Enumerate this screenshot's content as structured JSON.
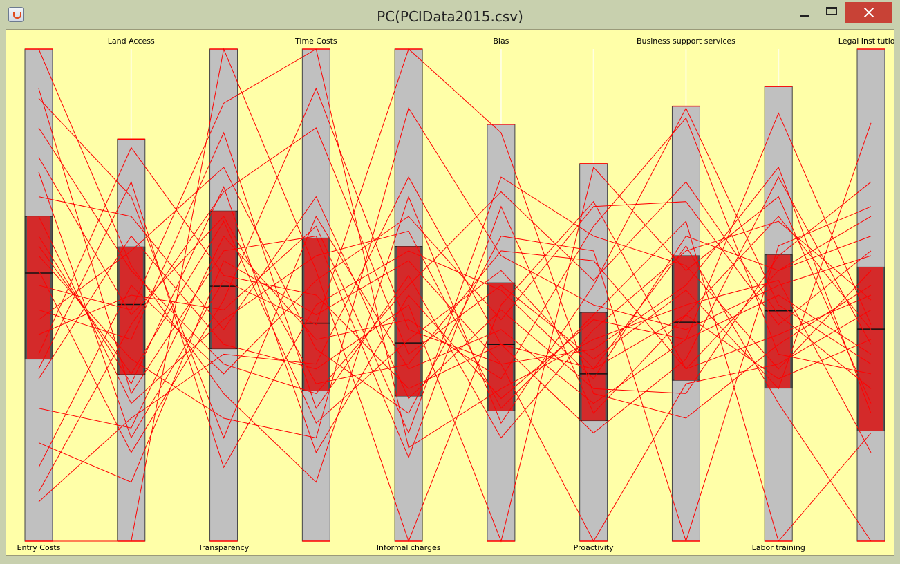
{
  "window": {
    "title": "PC(PCIData2015.csv)"
  },
  "chart_data": {
    "type": "parallel-coordinates",
    "title": "PC(PCIData2015.csv)",
    "line_color": "#ff0000",
    "box_color": "#d42a2a",
    "axis_bg_color": "#c0c0c0",
    "plot_bg_color": "#ffffa8",
    "axes": [
      {
        "name": "Entry Costs",
        "label_position": "bottom",
        "range_top": 1.0,
        "range_bottom": 0.0,
        "box_q3": 0.66,
        "box_median": 0.545,
        "box_q1": 0.37
      },
      {
        "name": "Land Access",
        "label_position": "top",
        "range_top": 0.817,
        "range_bottom": 0.0,
        "box_q3": 0.598,
        "box_median": 0.481,
        "box_q1": 0.339
      },
      {
        "name": "Transparency",
        "label_position": "bottom",
        "range_top": 1.0,
        "range_bottom": 0.0,
        "box_q3": 0.671,
        "box_median": 0.518,
        "box_q1": 0.391
      },
      {
        "name": "Time Costs",
        "label_position": "top",
        "range_top": 1.0,
        "range_bottom": 0.0,
        "box_q3": 0.616,
        "box_median": 0.443,
        "box_q1": 0.306
      },
      {
        "name": "Informal charges",
        "label_position": "bottom",
        "range_top": 1.0,
        "range_bottom": 0.0,
        "box_q3": 0.599,
        "box_median": 0.403,
        "box_q1": 0.295
      },
      {
        "name": "Bias",
        "label_position": "top",
        "range_top": 0.847,
        "range_bottom": 0.0,
        "box_q3": 0.525,
        "box_median": 0.4,
        "box_q1": 0.265
      },
      {
        "name": "Proactivity",
        "label_position": "bottom",
        "range_top": 0.767,
        "range_bottom": 0.0,
        "box_q3": 0.464,
        "box_median": 0.34,
        "box_q1": 0.245
      },
      {
        "name": "Business support services",
        "label_position": "top",
        "range_top": 0.884,
        "range_bottom": 0.0,
        "box_q3": 0.58,
        "box_median": 0.445,
        "box_q1": 0.327
      },
      {
        "name": "Labor training",
        "label_position": "bottom",
        "range_top": 0.924,
        "range_bottom": 0.0,
        "box_q3": 0.582,
        "box_median": 0.468,
        "box_q1": 0.311
      },
      {
        "name": "Legal Institutions",
        "label_position": "top",
        "range_top": 1.0,
        "range_bottom": 0.0,
        "box_q3": 0.557,
        "box_median": 0.431,
        "box_q1": 0.224
      }
    ],
    "records": [
      [
        1.0,
        0.56,
        0.3,
        0.12,
        0.7,
        0.24,
        0.52,
        0.88,
        0.48,
        0.36
      ],
      [
        0.0,
        0.0,
        1.0,
        0.55,
        0.0,
        0.48,
        0.69,
        0.35,
        0.55,
        0.62
      ],
      [
        0.52,
        0.47,
        0.89,
        1.0,
        0.19,
        0.31,
        0.41,
        0.48,
        0.53,
        0.18
      ],
      [
        0.75,
        0.21,
        0.53,
        0.44,
        1.0,
        0.83,
        0.3,
        0.25,
        0.4,
        0.52
      ],
      [
        0.33,
        0.62,
        0.4,
        0.35,
        0.48,
        0.0,
        0.76,
        0.55,
        0.7,
        0.28
      ],
      [
        0.6,
        0.34,
        0.65,
        0.24,
        0.41,
        0.55,
        0.35,
        0.6,
        0.28,
        0.0
      ],
      [
        0.9,
        0.7,
        0.21,
        0.66,
        0.35,
        0.43,
        0.28,
        0.41,
        0.87,
        0.44
      ],
      [
        0.2,
        0.12,
        0.57,
        0.46,
        0.57,
        0.36,
        0.0,
        0.32,
        0.36,
        0.47
      ],
      [
        0.45,
        0.59,
        0.76,
        0.39,
        0.26,
        0.62,
        0.59,
        0.0,
        0.6,
        0.68
      ],
      [
        0.66,
        0.28,
        0.45,
        0.58,
        0.63,
        0.27,
        0.46,
        0.65,
        0.0,
        0.22
      ],
      [
        0.1,
        0.44,
        0.71,
        0.84,
        0.38,
        0.52,
        0.37,
        0.51,
        0.31,
        0.85
      ],
      [
        0.84,
        0.55,
        0.36,
        0.3,
        0.52,
        0.71,
        0.53,
        0.73,
        0.46,
        0.31
      ],
      [
        0.38,
        0.8,
        0.54,
        0.5,
        0.31,
        0.4,
        0.22,
        0.37,
        0.74,
        0.4
      ],
      [
        0.58,
        0.37,
        0.25,
        0.21,
        0.88,
        0.58,
        0.48,
        0.43,
        0.52,
        0.58
      ],
      [
        0.27,
        0.23,
        0.62,
        0.41,
        0.45,
        0.33,
        0.64,
        0.86,
        0.38,
        0.34
      ],
      [
        0.7,
        0.66,
        0.43,
        0.7,
        0.29,
        0.47,
        0.31,
        0.3,
        0.58,
        0.73
      ],
      [
        0.47,
        0.41,
        0.83,
        0.27,
        0.54,
        0.21,
        0.43,
        0.59,
        0.65,
        0.49
      ],
      [
        0.92,
        0.3,
        0.59,
        0.62,
        0.17,
        0.68,
        0.26,
        0.46,
        0.33,
        0.41
      ],
      [
        0.15,
        0.52,
        0.34,
        0.53,
        0.66,
        0.45,
        0.68,
        0.69,
        0.44,
        0.59
      ],
      [
        0.55,
        0.18,
        0.49,
        0.92,
        0.43,
        0.36,
        0.39,
        0.52,
        0.76,
        0.26
      ],
      [
        0.78,
        0.46,
        0.66,
        0.32,
        0.36,
        0.59,
        0.57,
        0.35,
        0.42,
        0.5
      ],
      [
        0.35,
        0.73,
        0.15,
        0.48,
        0.59,
        0.51,
        0.33,
        0.62,
        0.55,
        0.66
      ],
      [
        0.62,
        0.32,
        0.72,
        0.18,
        0.5,
        0.29,
        0.45,
        0.41,
        0.5,
        0.38
      ],
      [
        0.42,
        0.5,
        0.47,
        0.64,
        0.22,
        0.74,
        0.62,
        0.56,
        0.35,
        0.55
      ],
      [
        0.08,
        0.25,
        0.38,
        0.36,
        0.74,
        0.4,
        0.35,
        0.46,
        0.66,
        0.43
      ]
    ]
  }
}
